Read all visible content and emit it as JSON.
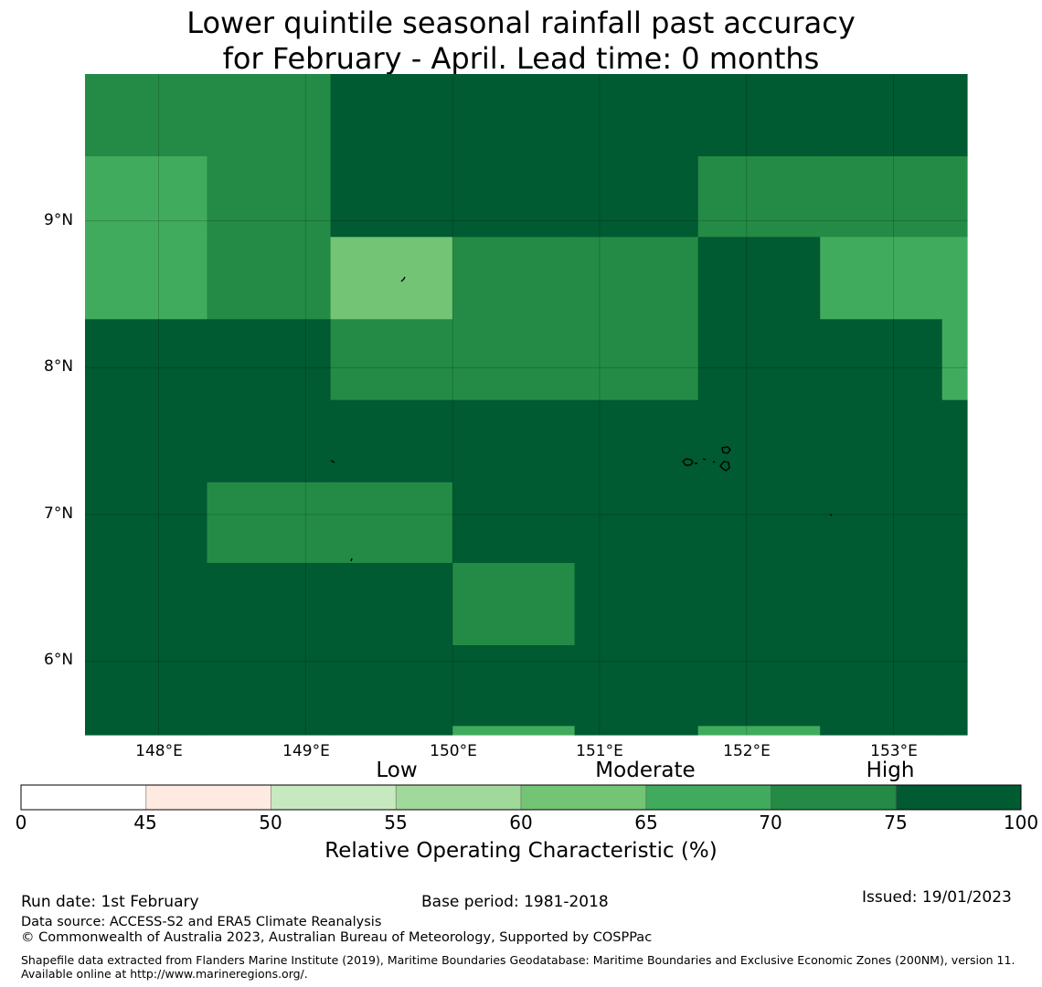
{
  "title": {
    "line1": "Lower quintile seasonal rainfall past accuracy",
    "line2": "for February - April. Lead time: 0 months"
  },
  "map": {
    "lat_labels": [
      "9°N",
      "8°N",
      "7°N",
      "6°N"
    ],
    "lon_labels": [
      "148°E",
      "149°E",
      "150°E",
      "151°E",
      "152°E",
      "153°E"
    ],
    "gridlines_lon": [
      148,
      149,
      150,
      151,
      152,
      153
    ],
    "gridlines_lat": [
      6,
      7,
      8,
      9
    ],
    "extent": {
      "lon": [
        147.5,
        153.5
      ],
      "lat": [
        5.5,
        10.0
      ]
    },
    "value_grid": {
      "lon_edges": [
        147.5,
        148.33,
        149.17,
        150.0,
        150.83,
        151.67,
        152.5,
        153.33,
        153.5
      ],
      "lat_rows_north_to_south": [
        {
          "lat": [
            9.44,
            10.0
          ],
          "values": [
            72,
            72,
            80,
            80,
            80,
            80,
            80,
            80
          ]
        },
        {
          "lat": [
            8.89,
            9.44
          ],
          "values": [
            67,
            72,
            80,
            80,
            80,
            72,
            72,
            72
          ]
        },
        {
          "lat": [
            8.33,
            8.89
          ],
          "values": [
            67,
            72,
            62,
            72,
            72,
            80,
            67,
            67
          ]
        },
        {
          "lat": [
            7.78,
            8.33
          ],
          "values": [
            80,
            80,
            72,
            72,
            72,
            80,
            80,
            67
          ]
        },
        {
          "lat": [
            7.22,
            7.78
          ],
          "values": [
            80,
            80,
            80,
            80,
            80,
            80,
            80,
            80
          ]
        },
        {
          "lat": [
            6.67,
            7.22
          ],
          "values": [
            80,
            72,
            72,
            80,
            80,
            80,
            80,
            80
          ]
        },
        {
          "lat": [
            6.11,
            6.67
          ],
          "values": [
            80,
            80,
            80,
            72,
            80,
            80,
            80,
            80
          ]
        },
        {
          "lat": [
            5.56,
            6.11
          ],
          "values": [
            80,
            80,
            80,
            80,
            80,
            80,
            80,
            80
          ]
        },
        {
          "lat": [
            5.5,
            5.56
          ],
          "values": [
            80,
            80,
            80,
            67,
            80,
            67,
            80,
            80
          ]
        }
      ]
    }
  },
  "colorbar": {
    "bins": [
      {
        "from": 0,
        "to": 45,
        "color": "#ffffff"
      },
      {
        "from": 45,
        "to": 50,
        "color": "#feeae0"
      },
      {
        "from": 50,
        "to": 55,
        "color": "#c7e9c0"
      },
      {
        "from": 55,
        "to": 60,
        "color": "#a1d99b"
      },
      {
        "from": 60,
        "to": 65,
        "color": "#74c476"
      },
      {
        "from": 65,
        "to": 70,
        "color": "#41ab5d"
      },
      {
        "from": 70,
        "to": 75,
        "color": "#238b45"
      },
      {
        "from": 75,
        "to": 100,
        "color": "#005a32"
      }
    ],
    "tick_labels": [
      "0",
      "45",
      "50",
      "55",
      "60",
      "65",
      "70",
      "75",
      "100"
    ],
    "categories": [
      {
        "label": "Low",
        "at_bin": 2
      },
      {
        "label": "Moderate",
        "at_bin": 4
      },
      {
        "label": "High",
        "at_bin": 6
      }
    ],
    "title": "Relative Operating Characteristic (%)"
  },
  "footer": {
    "run_date": "Run date: 1st February",
    "base_period": "Base period: 1981-2018",
    "issued": "Issued: 19/01/2023",
    "data_source": "Data source: ACCESS-S2 and ERA5 Climate Reanalysis",
    "copyright": "© Commonwealth of Australia 2023, Australian Bureau of Meteorology, Supported by COSPPac",
    "shapefile": "Shapefile data extracted from Flanders Marine Institute (2019), Maritime Boundaries Geodatabase: Maritime Boundaries and Exclusive Economic Zones (200NM), version 11. Available online at http://www.marineregions.org/."
  }
}
